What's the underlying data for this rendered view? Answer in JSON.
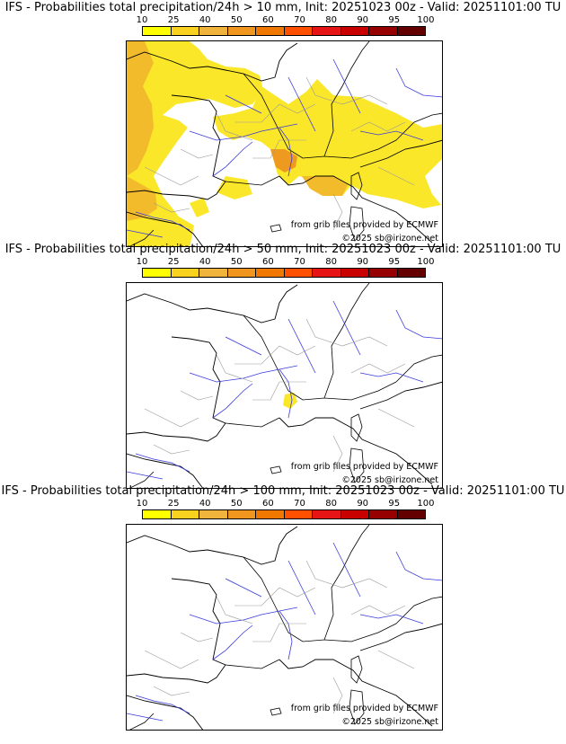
{
  "panels": [
    {
      "title": "IFS - Probabilities total precipitation/24h > 10 mm, Init: 20251023 00z - Valid: 20251101:00 TU",
      "credit_source": "from grib files provided by ECMWF",
      "credit_copy": "©2025 sb@irizone.net",
      "fields": "high"
    },
    {
      "title": "IFS - Probabilities total precipitation/24h > 50 mm, Init: 20251023 00z - Valid: 20251101:00 TU",
      "credit_source": "from grib files provided by ECMWF",
      "credit_copy": "©2025 sb@irizone.net",
      "fields": "low"
    },
    {
      "title": "IFS - Probabilities total precipitation/24h > 100 mm, Init: 20251023 00z - Valid: 20251101:00 TU",
      "credit_source": "from grib files provided by ECMWF",
      "credit_copy": "©2025 sb@irizone.net",
      "fields": "none"
    }
  ],
  "colorbar": {
    "labels": [
      "10",
      "25",
      "40",
      "50",
      "60",
      "70",
      "80",
      "90",
      "95",
      "100"
    ],
    "colors": [
      "#ffff00",
      "#f8d21e",
      "#f0b43c",
      "#f0961e",
      "#f07800",
      "#ff5000",
      "#e61414",
      "#c80000",
      "#960000",
      "#640000"
    ]
  },
  "map_colors": {
    "border": "#000000",
    "river": "#3a3adf",
    "admin": "#9a9a9a",
    "prob_yellow": "#fbe72a",
    "prob_orange": "#f2bb2c",
    "prob_dark": "#ee9a20"
  }
}
